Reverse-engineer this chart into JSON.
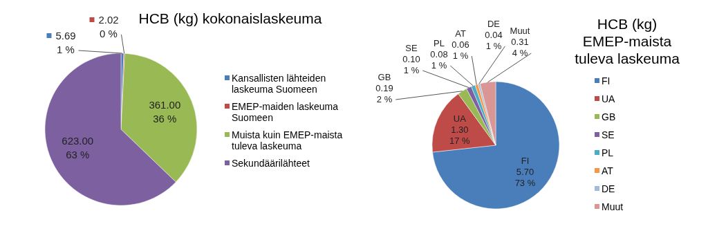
{
  "chart_data": [
    {
      "type": "pie",
      "title": "HCB (kg) kokonaislaskeuma",
      "categories": [
        "Kansallisten lähteiden laskeuma Suomeen",
        "EMEP-maiden laskeuma Suomeen",
        "Muista kuin EMEP-maista tuleva laskeuma",
        "Sekundäärilähteet"
      ],
      "values": [
        5.69,
        2.02,
        361.0,
        623.0
      ],
      "colors": [
        "#4a7ebb",
        "#be4b48",
        "#98b954",
        "#7d60a0"
      ],
      "value_labels": [
        "5.69\n1 %",
        "2.02\n0 %",
        "361.00\n36 %",
        "623.00\n63 %"
      ],
      "legend": "right"
    },
    {
      "type": "pie",
      "title": "HCB (kg) EMEP-maista tuleva laskeuma",
      "categories": [
        "FI",
        "UA",
        "GB",
        "SE",
        "PL",
        "AT",
        "DE",
        "Muut"
      ],
      "values": [
        5.7,
        1.3,
        0.19,
        0.1,
        0.08,
        0.06,
        0.04,
        0.31
      ],
      "colors": [
        "#4a7ebb",
        "#be4b48",
        "#98b954",
        "#7d60a0",
        "#4bacc6",
        "#f79646",
        "#a5b9d9",
        "#d99694"
      ],
      "value_labels": [
        "FI\n5.70\n73 %",
        "UA\n1.30\n17 %",
        "GB\n0.19\n2 %",
        "SE\n0.10\n1 %",
        "PL\n0.08\n1 %",
        "AT\n0.06\n1 %",
        "DE\n0.04\n1 %",
        "Muut\n0.31\n4 %"
      ],
      "legend": "right"
    }
  ]
}
